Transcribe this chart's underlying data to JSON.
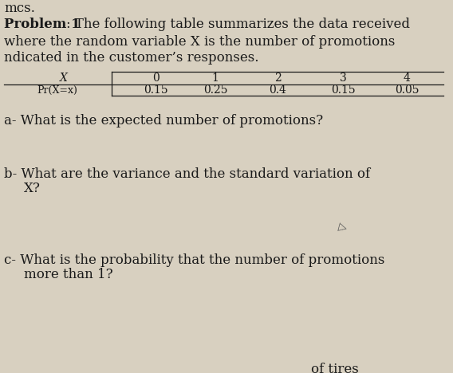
{
  "bg_color": "#d8d0c0",
  "title_prefix": "Problem 1",
  "title_rest": ": The following table summarizes the data received",
  "line2": "where the random variable X is the number of promotions",
  "line3": "ndicated in the customer’s responses.",
  "table_x_label": "X",
  "table_row_label": "Pr(X=x)",
  "table_x_values": [
    "0",
    "1",
    "2",
    "3",
    "4"
  ],
  "table_pr_values": [
    "0.15",
    "0.25",
    "0.4",
    "0.15",
    "0.05"
  ],
  "qa": "a- What is the expected number of promotions?",
  "qb1": "b- What are the variance and the standard variation of",
  "qb2": "X?",
  "qc1": "c- What is the probability that the number of promotions",
  "qc2": "more than 1?",
  "footer": "of tires",
  "fontsize_main": 12,
  "fontsize_table": 10,
  "text_color": "#1a1a1a"
}
